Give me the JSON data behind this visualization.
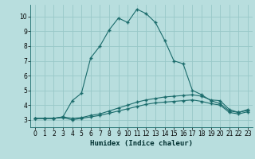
{
  "xlabel": "Humidex (Indice chaleur)",
  "bg_color": "#b8dede",
  "grid_color": "#98c8c8",
  "line_color": "#1a6b6b",
  "xlim": [
    -0.5,
    23.5
  ],
  "ylim": [
    2.5,
    10.8
  ],
  "xticks": [
    0,
    1,
    2,
    3,
    4,
    5,
    6,
    7,
    8,
    9,
    10,
    11,
    12,
    13,
    14,
    15,
    16,
    17,
    18,
    19,
    20,
    21,
    22,
    23
  ],
  "yticks": [
    3,
    4,
    5,
    6,
    7,
    8,
    9,
    10
  ],
  "line1_x": [
    0,
    1,
    2,
    3,
    4,
    5,
    6,
    7,
    8,
    9,
    10,
    11,
    12,
    13,
    14,
    15,
    16,
    17,
    18,
    19,
    20,
    21,
    22,
    23
  ],
  "line1_y": [
    3.1,
    3.1,
    3.1,
    3.2,
    4.3,
    4.8,
    7.2,
    8.0,
    9.1,
    9.9,
    9.6,
    10.5,
    10.2,
    9.6,
    8.4,
    7.0,
    6.8,
    5.0,
    4.7,
    4.3,
    4.1,
    3.6,
    3.5,
    3.7
  ],
  "line2_x": [
    0,
    1,
    2,
    3,
    4,
    5,
    6,
    7,
    8,
    9,
    10,
    11,
    12,
    13,
    14,
    15,
    16,
    17,
    18,
    19,
    20,
    21,
    22,
    23
  ],
  "line2_y": [
    3.1,
    3.1,
    3.1,
    3.2,
    3.1,
    3.15,
    3.3,
    3.4,
    3.6,
    3.8,
    4.0,
    4.2,
    4.35,
    4.45,
    4.55,
    4.6,
    4.65,
    4.7,
    4.6,
    4.35,
    4.3,
    3.7,
    3.5,
    3.65
  ],
  "line3_x": [
    0,
    1,
    2,
    3,
    4,
    5,
    6,
    7,
    8,
    9,
    10,
    11,
    12,
    13,
    14,
    15,
    16,
    17,
    18,
    19,
    20,
    21,
    22,
    23
  ],
  "line3_y": [
    3.1,
    3.1,
    3.1,
    3.15,
    3.0,
    3.1,
    3.2,
    3.3,
    3.45,
    3.6,
    3.75,
    3.9,
    4.05,
    4.15,
    4.2,
    4.25,
    4.3,
    4.35,
    4.25,
    4.1,
    4.0,
    3.5,
    3.4,
    3.55
  ]
}
